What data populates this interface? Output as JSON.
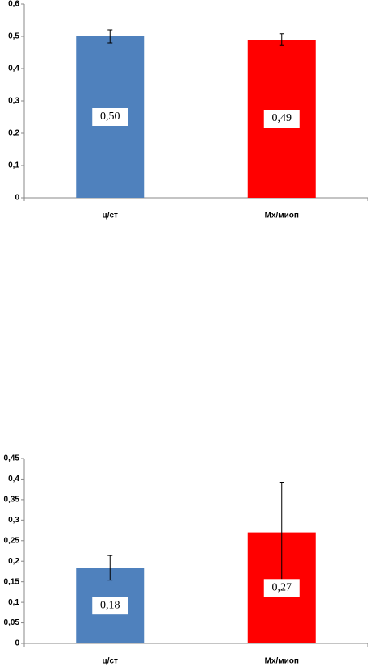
{
  "chart_data": [
    {
      "type": "bar",
      "categories": [
        "ц/ст",
        "Мх/миоп"
      ],
      "values": [
        0.5,
        0.49
      ],
      "value_labels": [
        "0,50",
        "0,49"
      ],
      "errors": [
        0.02,
        0.018
      ],
      "colors": [
        "#4f81bd",
        "#ff0000"
      ],
      "ylim": [
        0,
        0.6
      ],
      "yticks": [
        0,
        {
          "value": 0.1,
          "label": "0,1"
        },
        {
          "value": 0.2,
          "label": "0,2"
        },
        {
          "value": 0.3,
          "label": "0,3"
        },
        {
          "value": 0.4,
          "label": "0,4"
        },
        {
          "value": 0.5,
          "label": "0,5"
        },
        {
          "value": 0.6,
          "label": "0,6"
        }
      ]
    },
    {
      "type": "bar",
      "categories": [
        "ц/ст",
        "Мх/миоп"
      ],
      "values": [
        0.184,
        0.27
      ],
      "value_labels": [
        "0,18",
        "0,27"
      ],
      "errors": [
        0.03,
        0.122
      ],
      "colors": [
        "#4f81bd",
        "#ff0000"
      ],
      "ylim": [
        0,
        0.45
      ],
      "yticks": [
        0,
        {
          "value": 0.05,
          "label": "0,05"
        },
        {
          "value": 0.1,
          "label": "0,1"
        },
        {
          "value": 0.15,
          "label": "0,15"
        },
        {
          "value": 0.2,
          "label": "0,2"
        },
        {
          "value": 0.25,
          "label": "0,25"
        },
        {
          "value": 0.3,
          "label": "0,3"
        },
        {
          "value": 0.35,
          "label": "0,35"
        },
        {
          "value": 0.4,
          "label": "0,4"
        },
        {
          "value": 0.45,
          "label": "0,45"
        }
      ]
    }
  ]
}
